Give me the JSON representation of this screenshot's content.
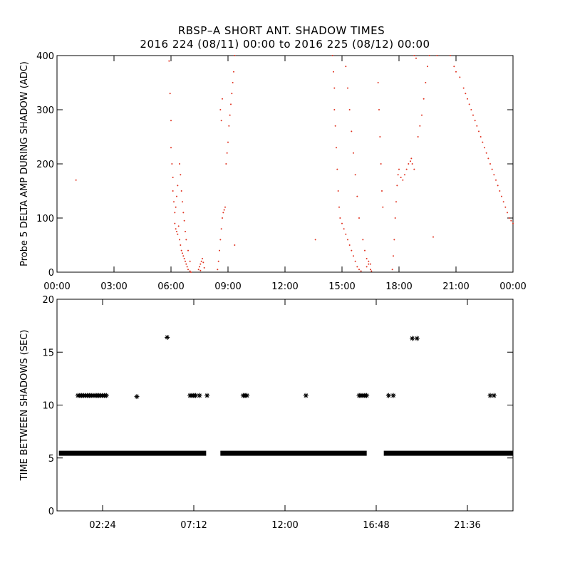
{
  "title_line1": "RBSP–A SHORT ANT. SHADOW TIMES",
  "title_line2": "2016 224 (08/11) 00:00 to 2016 225 (08/12) 00:00",
  "colors": {
    "top_points": "#e0301e",
    "bottom_points": "#000000",
    "axes": "#000000"
  },
  "chart_data": [
    {
      "type": "scatter",
      "ylabel": "Probe 5 DELTA AMP DURING SHADOW (ADC)",
      "xlabel": "",
      "x_units": "hours since 2016-08-11 00:00",
      "xlim": [
        0,
        24
      ],
      "ylim": [
        0,
        400
      ],
      "x_ticks": [
        0,
        3,
        6,
        9,
        12,
        15,
        18,
        21,
        24
      ],
      "x_tick_labels": [
        "00:00",
        "03:00",
        "06:00",
        "09:00",
        "12:00",
        "15:00",
        "18:00",
        "21:00",
        "00:00"
      ],
      "y_ticks": [
        0,
        100,
        200,
        300,
        400
      ],
      "y_tick_labels": [
        "0",
        "100",
        "200",
        "300",
        "400"
      ],
      "marker": "dot",
      "color": "#e0301e",
      "points": [
        [
          1.0,
          170
        ],
        [
          5.9,
          390
        ],
        [
          5.95,
          330
        ],
        [
          6.0,
          280
        ],
        [
          6.0,
          230
        ],
        [
          6.05,
          200
        ],
        [
          6.1,
          175
        ],
        [
          6.1,
          150
        ],
        [
          6.15,
          130
        ],
        [
          6.2,
          110
        ],
        [
          6.2,
          90
        ],
        [
          6.25,
          80
        ],
        [
          6.3,
          75
        ],
        [
          6.35,
          70
        ],
        [
          6.4,
          85
        ],
        [
          6.45,
          60
        ],
        [
          6.5,
          50
        ],
        [
          6.55,
          40
        ],
        [
          6.6,
          35
        ],
        [
          6.65,
          30
        ],
        [
          6.7,
          25
        ],
        [
          6.75,
          20
        ],
        [
          6.8,
          15
        ],
        [
          6.85,
          10
        ],
        [
          6.9,
          5
        ],
        [
          7.0,
          2
        ],
        [
          7.05,
          0
        ],
        [
          6.35,
          160
        ],
        [
          6.3,
          140
        ],
        [
          6.25,
          120
        ],
        [
          6.45,
          200
        ],
        [
          6.5,
          180
        ],
        [
          6.55,
          150
        ],
        [
          6.6,
          130
        ],
        [
          6.65,
          110
        ],
        [
          6.7,
          95
        ],
        [
          6.75,
          75
        ],
        [
          6.8,
          60
        ],
        [
          6.9,
          40
        ],
        [
          7.0,
          20
        ],
        [
          7.45,
          5
        ],
        [
          7.5,
          10
        ],
        [
          7.55,
          15
        ],
        [
          7.6,
          20
        ],
        [
          7.65,
          25
        ],
        [
          7.7,
          18
        ],
        [
          7.75,
          8
        ],
        [
          7.55,
          3
        ],
        [
          8.45,
          5
        ],
        [
          8.5,
          20
        ],
        [
          8.55,
          40
        ],
        [
          8.6,
          60
        ],
        [
          8.65,
          80
        ],
        [
          8.7,
          100
        ],
        [
          8.75,
          110
        ],
        [
          8.8,
          115
        ],
        [
          8.85,
          120
        ],
        [
          8.9,
          200
        ],
        [
          8.95,
          220
        ],
        [
          9.0,
          240
        ],
        [
          9.05,
          270
        ],
        [
          9.1,
          290
        ],
        [
          9.15,
          310
        ],
        [
          9.2,
          330
        ],
        [
          9.25,
          350
        ],
        [
          9.3,
          370
        ],
        [
          9.35,
          400
        ],
        [
          8.6,
          300
        ],
        [
          8.65,
          280
        ],
        [
          8.7,
          320
        ],
        [
          9.35,
          50
        ],
        [
          13.6,
          60
        ],
        [
          14.5,
          400
        ],
        [
          14.55,
          370
        ],
        [
          14.6,
          340
        ],
        [
          14.6,
          300
        ],
        [
          14.65,
          270
        ],
        [
          14.7,
          230
        ],
        [
          14.75,
          190
        ],
        [
          14.8,
          150
        ],
        [
          14.85,
          120
        ],
        [
          14.9,
          100
        ],
        [
          15.0,
          90
        ],
        [
          15.1,
          80
        ],
        [
          15.2,
          70
        ],
        [
          15.3,
          60
        ],
        [
          15.4,
          50
        ],
        [
          15.5,
          40
        ],
        [
          15.6,
          30
        ],
        [
          15.7,
          20
        ],
        [
          15.8,
          10
        ],
        [
          15.9,
          5
        ],
        [
          16.0,
          2
        ],
        [
          15.2,
          380
        ],
        [
          15.3,
          340
        ],
        [
          15.4,
          300
        ],
        [
          15.5,
          260
        ],
        [
          15.6,
          220
        ],
        [
          15.7,
          180
        ],
        [
          15.8,
          140
        ],
        [
          15.9,
          100
        ],
        [
          16.1,
          60
        ],
        [
          16.2,
          40
        ],
        [
          16.3,
          25
        ],
        [
          16.4,
          15
        ],
        [
          16.5,
          5
        ],
        [
          16.55,
          2
        ],
        [
          16.3,
          10
        ],
        [
          16.4,
          20
        ],
        [
          16.5,
          15
        ],
        [
          16.9,
          350
        ],
        [
          16.95,
          300
        ],
        [
          17.0,
          250
        ],
        [
          17.05,
          200
        ],
        [
          17.1,
          150
        ],
        [
          17.15,
          120
        ],
        [
          17.65,
          5
        ],
        [
          17.7,
          30
        ],
        [
          17.75,
          60
        ],
        [
          17.8,
          100
        ],
        [
          17.85,
          130
        ],
        [
          17.9,
          160
        ],
        [
          17.95,
          180
        ],
        [
          18.0,
          190
        ],
        [
          18.1,
          175
        ],
        [
          18.2,
          170
        ],
        [
          18.3,
          180
        ],
        [
          18.4,
          190
        ],
        [
          18.5,
          200
        ],
        [
          18.6,
          205
        ],
        [
          18.65,
          210
        ],
        [
          18.7,
          200
        ],
        [
          18.8,
          190
        ],
        [
          19.0,
          250
        ],
        [
          19.1,
          270
        ],
        [
          19.2,
          290
        ],
        [
          19.3,
          320
        ],
        [
          19.4,
          350
        ],
        [
          19.5,
          380
        ],
        [
          19.6,
          400
        ],
        [
          20.0,
          400
        ],
        [
          20.7,
          400
        ],
        [
          20.9,
          380
        ],
        [
          21.0,
          370
        ],
        [
          21.2,
          360
        ],
        [
          21.4,
          340
        ],
        [
          21.6,
          320
        ],
        [
          21.8,
          300
        ],
        [
          22.0,
          280
        ],
        [
          22.2,
          260
        ],
        [
          22.4,
          240
        ],
        [
          22.6,
          220
        ],
        [
          22.8,
          200
        ],
        [
          23.0,
          180
        ],
        [
          23.2,
          160
        ],
        [
          23.4,
          140
        ],
        [
          23.6,
          120
        ],
        [
          23.8,
          100
        ],
        [
          24.0,
          90
        ],
        [
          21.5,
          330
        ],
        [
          21.7,
          310
        ],
        [
          21.9,
          290
        ],
        [
          22.1,
          270
        ],
        [
          22.3,
          250
        ],
        [
          22.5,
          230
        ],
        [
          22.7,
          210
        ],
        [
          22.9,
          190
        ],
        [
          23.1,
          170
        ],
        [
          23.3,
          150
        ],
        [
          23.5,
          130
        ],
        [
          23.7,
          110
        ],
        [
          23.9,
          95
        ],
        [
          19.8,
          65
        ],
        [
          18.8,
          400
        ],
        [
          18.9,
          395
        ]
      ]
    },
    {
      "type": "scatter",
      "ylabel": "TIME BETWEEN SHADOWS (SEC)",
      "xlabel": "",
      "x_units": "hours since 2016-08-11 00:00",
      "xlim": [
        0,
        24
      ],
      "ylim": [
        0,
        20
      ],
      "x_ticks": [
        2.4,
        7.2,
        12.0,
        16.8,
        21.6
      ],
      "x_tick_labels": [
        "02:24",
        "07:12",
        "12:00",
        "16:48",
        "21:36"
      ],
      "y_ticks": [
        0,
        5,
        10,
        15,
        20
      ],
      "y_tick_labels": [
        "0",
        "5",
        "10",
        "15",
        "20"
      ],
      "marker": "asterisk",
      "color": "#000000",
      "baseline_value": 5.45,
      "baseline_segments": [
        [
          0.1,
          7.85
        ],
        [
          8.6,
          16.3
        ],
        [
          17.2,
          24.0
        ]
      ],
      "points": [
        [
          1.1,
          10.9
        ],
        [
          1.2,
          10.9
        ],
        [
          1.3,
          10.9
        ],
        [
          1.4,
          10.9
        ],
        [
          1.5,
          10.9
        ],
        [
          1.6,
          10.9
        ],
        [
          1.7,
          10.9
        ],
        [
          1.8,
          10.9
        ],
        [
          1.9,
          10.9
        ],
        [
          2.0,
          10.9
        ],
        [
          2.1,
          10.9
        ],
        [
          2.2,
          10.9
        ],
        [
          2.3,
          10.9
        ],
        [
          2.4,
          10.9
        ],
        [
          2.5,
          10.9
        ],
        [
          2.6,
          10.9
        ],
        [
          4.2,
          10.8
        ],
        [
          5.8,
          16.4
        ],
        [
          7.0,
          10.9
        ],
        [
          7.1,
          10.9
        ],
        [
          7.2,
          10.9
        ],
        [
          7.3,
          10.9
        ],
        [
          7.5,
          10.9
        ],
        [
          7.9,
          10.9
        ],
        [
          9.8,
          10.9
        ],
        [
          9.9,
          10.9
        ],
        [
          10.0,
          10.9
        ],
        [
          13.1,
          10.9
        ],
        [
          15.9,
          10.9
        ],
        [
          16.0,
          10.9
        ],
        [
          16.1,
          10.9
        ],
        [
          16.2,
          10.9
        ],
        [
          16.3,
          10.9
        ],
        [
          17.45,
          10.9
        ],
        [
          17.7,
          10.9
        ],
        [
          18.7,
          16.3
        ],
        [
          18.95,
          16.3
        ],
        [
          22.8,
          10.9
        ],
        [
          23.0,
          10.9
        ]
      ]
    }
  ]
}
